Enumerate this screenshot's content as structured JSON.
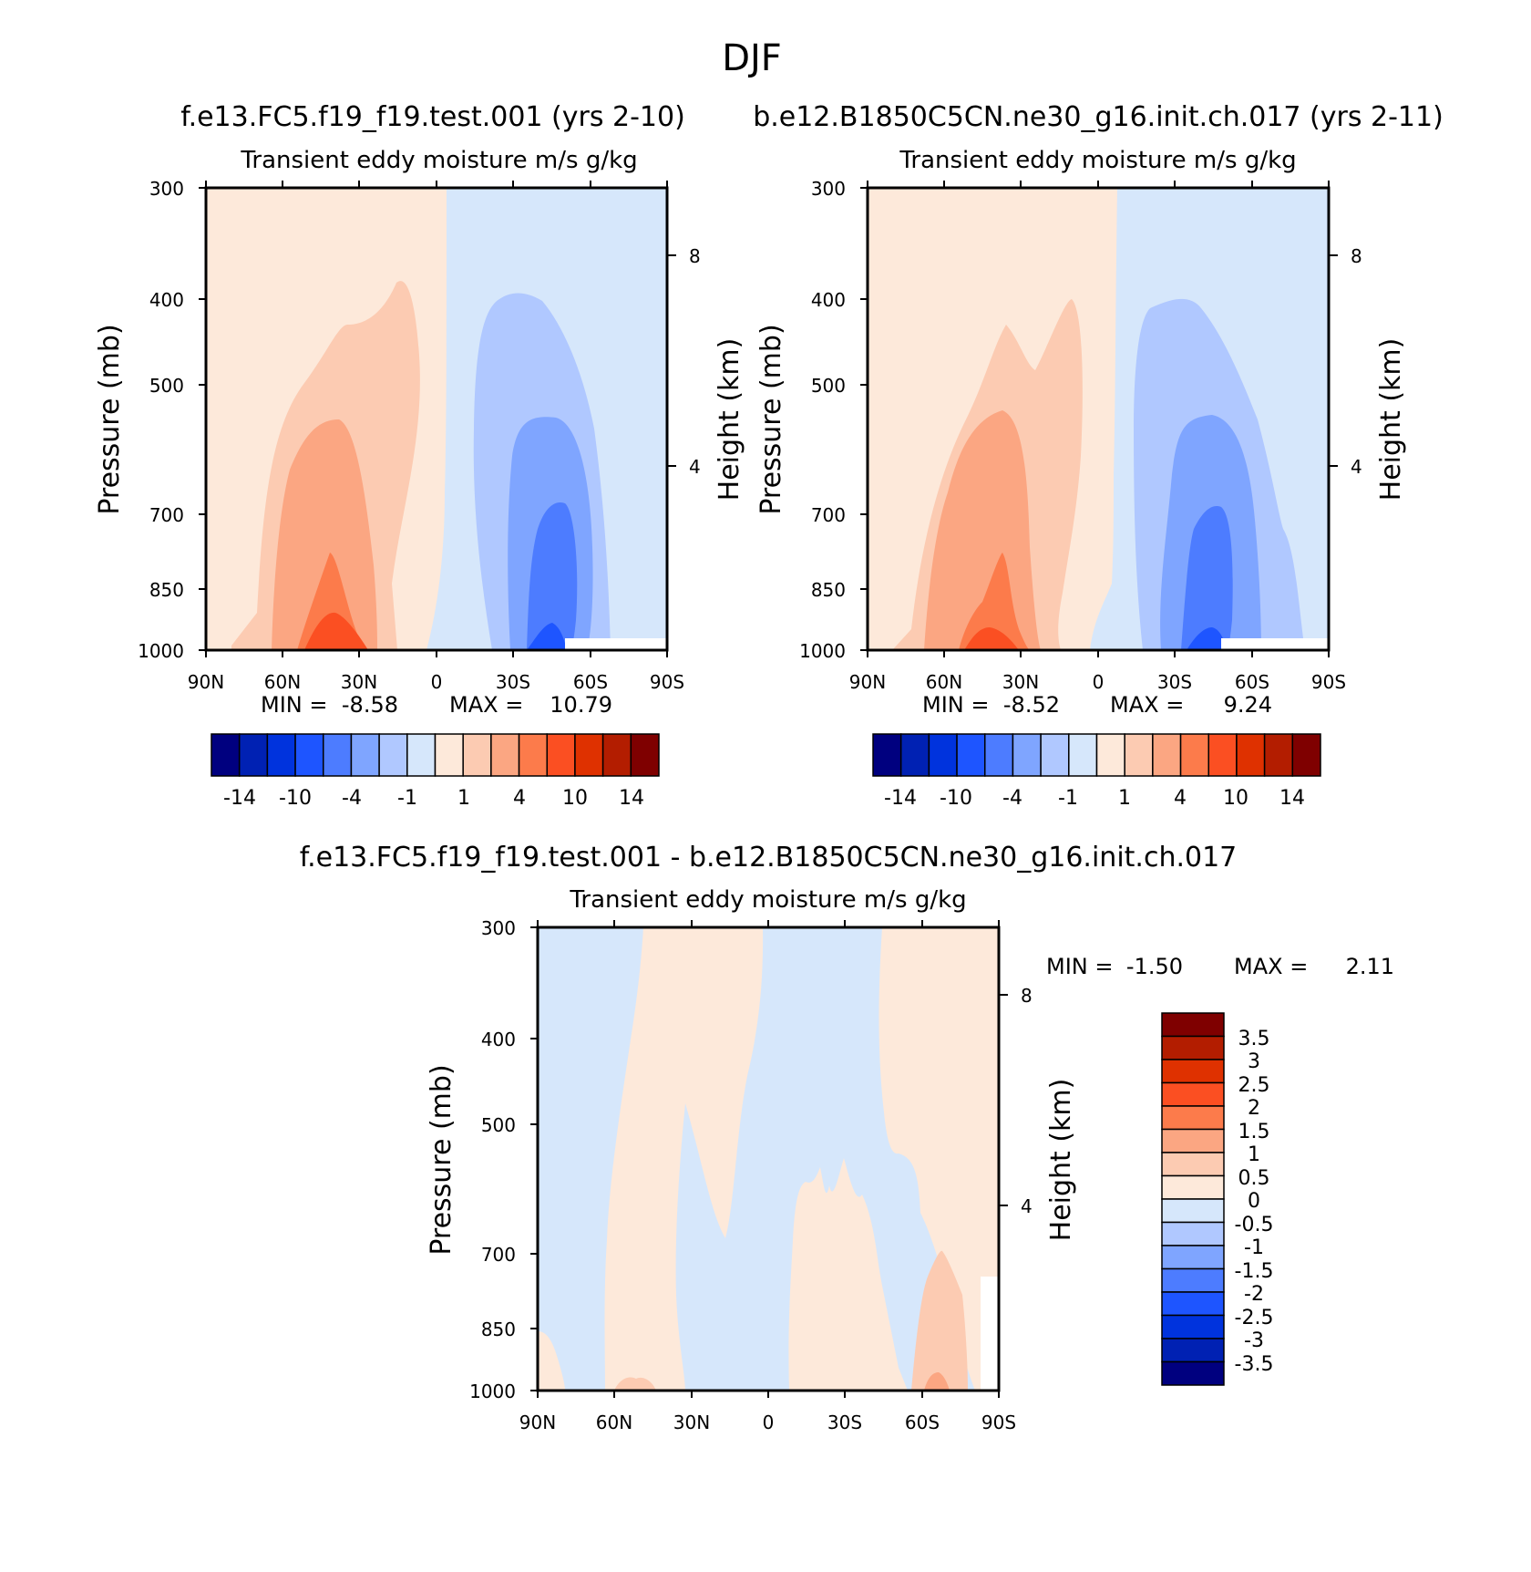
{
  "figure_title": "DJF",
  "colors": {
    "main_scale": [
      "#00007f",
      "#0021b3",
      "#0033dd",
      "#1e55ff",
      "#4d7cff",
      "#7fa5ff",
      "#b0c8ff",
      "#d6e7fb",
      "#fde9da",
      "#fccbb2",
      "#fba682",
      "#fc7b4b",
      "#fb4f22",
      "#df3100",
      "#b31d00",
      "#7f0000"
    ],
    "diff_scale": [
      "#00007f",
      "#0021b3",
      "#0033dd",
      "#1e55ff",
      "#4d7cff",
      "#7fa5ff",
      "#b0c8ff",
      "#d6e7fb",
      "#fde9da",
      "#fccbb2",
      "#fba682",
      "#fc7b4b",
      "#fb4f22",
      "#df3100",
      "#b31d00",
      "#7f0000"
    ]
  },
  "chart_data": [
    {
      "type": "contour",
      "run_label": "f.e13.FC5.f19_f19.test.001 (yrs 2-10)",
      "title": "Transient eddy moisture m/s g/kg",
      "ylabel": "Pressure (mb)",
      "ylabel_right": "Height (km)",
      "x_ticks": [
        "90N",
        "60N",
        "30N",
        "0",
        "30S",
        "60S",
        "90S"
      ],
      "y_ticks": [
        "300",
        "400",
        "500",
        "700",
        "850",
        "1000"
      ],
      "y_right_ticks": [
        "8",
        "4"
      ],
      "xlim": [
        90,
        -90
      ],
      "ylim": [
        1000,
        300
      ],
      "stats": {
        "min_label": "MIN =",
        "min": "-8.58",
        "max_label": "MAX =",
        "max": "10.79"
      },
      "colorbar_labels": [
        "-14",
        "-10",
        "-4",
        "-1",
        "1",
        "4",
        "10",
        "14"
      ],
      "approx_extrema": {
        "min_location": "~45S near 1000 mb",
        "max_location": "~35N near 1000 mb"
      }
    },
    {
      "type": "contour",
      "run_label": "b.e12.B1850C5CN.ne30_g16.init.ch.017 (yrs 2-11)",
      "title": "Transient eddy moisture m/s g/kg",
      "ylabel": "Pressure (mb)",
      "ylabel_right": "Height (km)",
      "x_ticks": [
        "90N",
        "60N",
        "30N",
        "0",
        "30S",
        "60S",
        "90S"
      ],
      "y_ticks": [
        "300",
        "400",
        "500",
        "700",
        "850",
        "1000"
      ],
      "y_right_ticks": [
        "8",
        "4"
      ],
      "xlim": [
        90,
        -90
      ],
      "ylim": [
        1000,
        300
      ],
      "stats": {
        "min_label": "MIN =",
        "min": "-8.52",
        "max_label": "MAX =",
        "max": "9.24"
      },
      "colorbar_labels": [
        "-14",
        "-10",
        "-4",
        "-1",
        "1",
        "4",
        "10",
        "14"
      ],
      "approx_extrema": {
        "min_location": "~45S near 1000 mb",
        "max_location": "~35N near 1000 mb"
      }
    },
    {
      "type": "contour",
      "run_label": "f.e13.FC5.f19_f19.test.001 - b.e12.B1850C5CN.ne30_g16.init.ch.017",
      "title": "Transient eddy moisture m/s g/kg",
      "ylabel": "Pressure (mb)",
      "ylabel_right": "Height (km)",
      "x_ticks": [
        "90N",
        "60N",
        "30N",
        "0",
        "30S",
        "60S",
        "90S"
      ],
      "y_ticks": [
        "300",
        "400",
        "500",
        "700",
        "850",
        "1000"
      ],
      "y_right_ticks": [
        "8",
        "4"
      ],
      "xlim": [
        90,
        -90
      ],
      "ylim": [
        1000,
        300
      ],
      "stats": {
        "min_label": "MIN =",
        "min": "-1.50",
        "max_label": "MAX =",
        "max": "2.11"
      },
      "colorbar_labels": [
        "3.5",
        "3",
        "2.5",
        "2",
        "1.5",
        "1",
        "0.5",
        "0",
        "-0.5",
        "-1",
        "-1.5",
        "-2",
        "-2.5",
        "-3",
        "-3.5"
      ]
    }
  ]
}
